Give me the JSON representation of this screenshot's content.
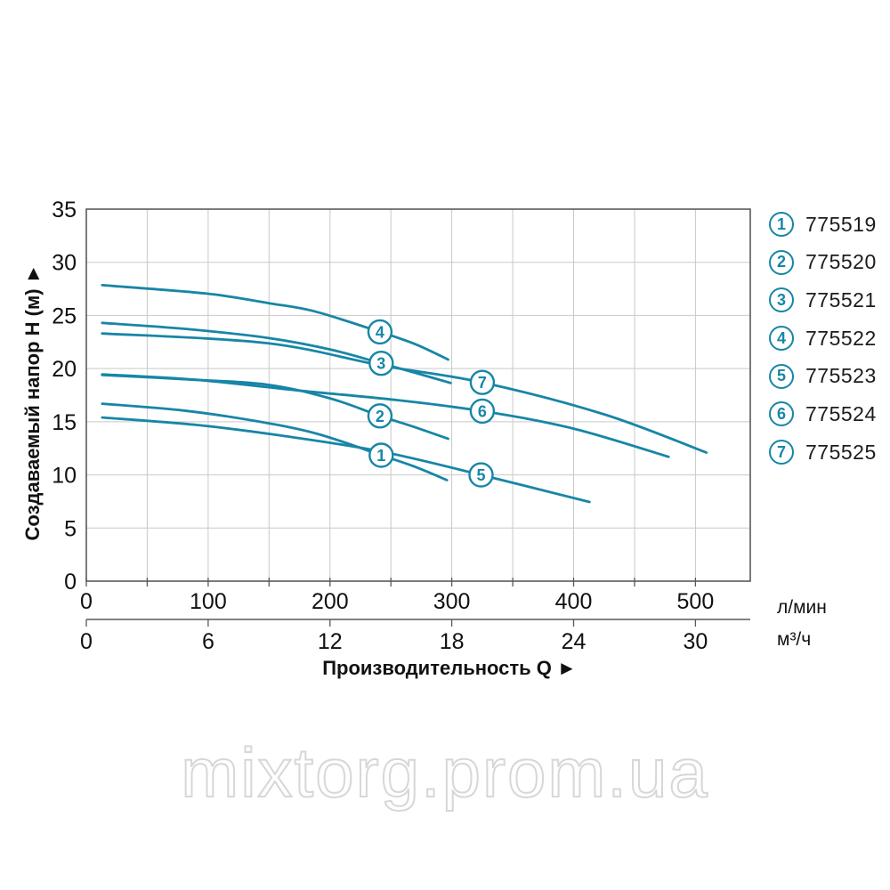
{
  "watermark": "mixtorg.prom.ua",
  "colors": {
    "curve": "#1786a6",
    "grid": "#c9c9c9",
    "frame": "#58595b",
    "text": "#111111",
    "watermark_stroke": "#d7d7d7"
  },
  "legend": {
    "items": [
      {
        "num": "1",
        "code": "775519"
      },
      {
        "num": "2",
        "code": "775520"
      },
      {
        "num": "3",
        "code": "775521"
      },
      {
        "num": "4",
        "code": "775522"
      },
      {
        "num": "5",
        "code": "775523"
      },
      {
        "num": "6",
        "code": "775524"
      },
      {
        "num": "7",
        "code": "775525"
      }
    ]
  },
  "chart_data": {
    "type": "line",
    "title": "",
    "xlabel": "Производительность Q ►",
    "ylabel": "Создаваемый напор H (м) ►",
    "grid": true,
    "x_axis_primary": {
      "unit": "л/мин",
      "ticks": [
        0,
        100,
        200,
        300,
        400,
        500
      ],
      "range": [
        0,
        545
      ],
      "minor_step": 50
    },
    "x_axis_secondary": {
      "unit": "м³/ч",
      "ticks": [
        0,
        6,
        12,
        18,
        24,
        30
      ],
      "lmin_per_unit": 16.6667
    },
    "y_axis": {
      "label": "H (м)",
      "ticks": [
        0,
        5,
        10,
        15,
        20,
        25,
        30,
        35
      ],
      "range": [
        0,
        35
      ],
      "grid_step": 5
    },
    "series": [
      {
        "num": "1",
        "code": "775519",
        "points": [
          [
            13,
            16.7
          ],
          [
            80,
            16.05
          ],
          [
            140,
            15.05
          ],
          [
            190,
            13.85
          ],
          [
            242,
            11.85
          ],
          [
            270,
            10.75
          ],
          [
            296,
            9.5
          ]
        ],
        "label_at": [
          242,
          11.85
        ]
      },
      {
        "num": "2",
        "code": "775520",
        "points": [
          [
            13,
            19.4
          ],
          [
            80,
            19.0
          ],
          [
            148,
            18.5
          ],
          [
            200,
            17.2
          ],
          [
            241,
            15.55
          ],
          [
            268,
            14.55
          ],
          [
            297,
            13.4
          ]
        ],
        "label_at": [
          241,
          15.55
        ]
      },
      {
        "num": "3",
        "code": "775521",
        "points": [
          [
            13,
            24.3
          ],
          [
            80,
            23.75
          ],
          [
            148,
            22.9
          ],
          [
            200,
            21.8
          ],
          [
            242,
            20.5
          ],
          [
            270,
            19.6
          ],
          [
            299,
            18.65
          ]
        ],
        "label_at": [
          242,
          20.5
        ]
      },
      {
        "num": "4",
        "code": "775522",
        "points": [
          [
            13,
            27.85
          ],
          [
            99,
            27.05
          ],
          [
            150,
            26.15
          ],
          [
            187,
            25.4
          ],
          [
            241,
            23.45
          ],
          [
            270,
            22.3
          ],
          [
            297,
            20.85
          ]
        ],
        "label_at": [
          241,
          23.45
        ]
      },
      {
        "num": "5",
        "code": "775523",
        "points": [
          [
            13,
            15.4
          ],
          [
            90,
            14.7
          ],
          [
            160,
            13.7
          ],
          [
            242,
            12.2
          ],
          [
            324,
            10.0
          ],
          [
            413,
            7.45
          ]
        ],
        "label_at": [
          324,
          10.0
        ]
      },
      {
        "num": "6",
        "code": "775524",
        "points": [
          [
            13,
            19.45
          ],
          [
            90,
            18.95
          ],
          [
            177,
            17.9
          ],
          [
            250,
            17.1
          ],
          [
            325,
            16.0
          ],
          [
            400,
            14.35
          ],
          [
            478,
            11.7
          ]
        ],
        "label_at": [
          325,
          16.0
        ]
      },
      {
        "num": "7",
        "code": "775525",
        "points": [
          [
            13,
            23.3
          ],
          [
            148,
            22.4
          ],
          [
            242,
            20.3
          ],
          [
            325,
            18.7
          ],
          [
            425,
            15.7
          ],
          [
            509,
            12.1
          ]
        ],
        "label_at": [
          325,
          18.7
        ]
      }
    ]
  }
}
